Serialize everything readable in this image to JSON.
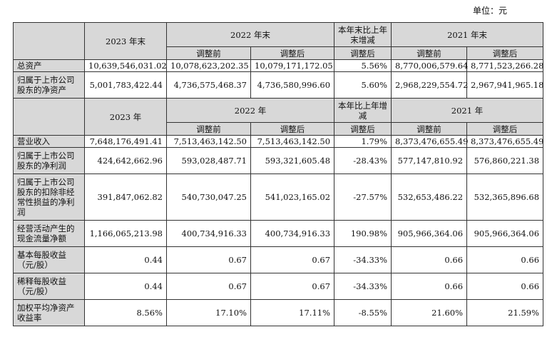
{
  "unit_label": "单位：元",
  "section1": {
    "headers": {
      "y2023": "2023 年末",
      "y2022": "2022 年末",
      "change": "本年末比上年末增减",
      "y2021": "2021 年末",
      "before": "调整前",
      "after": "调整后",
      "change_sub": "调整后"
    },
    "rows": [
      {
        "label": "总资产",
        "v2023": "10,639,546,031.02",
        "v2022_before": "10,078,623,202.35",
        "v2022_after": "10,079,171,172.05",
        "change": "5.56%",
        "v2021_before": "8,770,006,579.64",
        "v2021_after": "8,771,523,266.28"
      },
      {
        "label": "归属于上市公司股东的净资产",
        "v2023": "5,001,783,422.44",
        "v2022_before": "4,736,575,468.37",
        "v2022_after": "4,736,580,996.60",
        "change": "5.60%",
        "v2021_before": "2,968,229,554.72",
        "v2021_after": "2,967,941,965.18"
      }
    ]
  },
  "section2": {
    "headers": {
      "y2023": "2023 年",
      "y2022": "2022 年",
      "change": "本年比上年增减",
      "y2021": "2021 年",
      "before": "调整前",
      "after": "调整后",
      "change_sub": "调整后"
    },
    "rows": [
      {
        "label": "营业收入",
        "v2023": "7,648,176,491.41",
        "v2022_before": "7,513,463,142.50",
        "v2022_after": "7,513,463,142.50",
        "change": "1.79%",
        "v2021_before": "8,373,476,655.49",
        "v2021_after": "8,373,476,655.49"
      },
      {
        "label": "归属于上市公司股东的净利润",
        "v2023": "424,642,662.96",
        "v2022_before": "593,028,487.71",
        "v2022_after": "593,321,605.48",
        "change": "-28.43%",
        "v2021_before": "577,147,810.92",
        "v2021_after": "576,860,221.38"
      },
      {
        "label": "归属于上市公司股东的扣除非经常性损益的净利润",
        "v2023": "391,847,062.82",
        "v2022_before": "540,730,047.25",
        "v2022_after": "541,023,165.02",
        "change": "-27.57%",
        "v2021_before": "532,653,486.22",
        "v2021_after": "532,365,896.68"
      },
      {
        "label": "经营活动产生的现金流量净额",
        "v2023": "1,166,065,213.98",
        "v2022_before": "400,734,916.33",
        "v2022_after": "400,734,916.33",
        "change": "190.98%",
        "v2021_before": "905,966,364.06",
        "v2021_after": "905,966,364.06"
      },
      {
        "label": "基本每股收益（元/股）",
        "v2023": "0.44",
        "v2022_before": "0.67",
        "v2022_after": "0.67",
        "change": "-34.33%",
        "v2021_before": "0.66",
        "v2021_after": "0.66"
      },
      {
        "label": "稀释每股收益（元/股）",
        "v2023": "0.44",
        "v2022_before": "0.67",
        "v2022_after": "0.67",
        "change": "-34.33%",
        "v2021_before": "0.66",
        "v2021_after": "0.66"
      },
      {
        "label": "加权平均净资产收益率",
        "v2023": "8.56%",
        "v2022_before": "17.10%",
        "v2022_after": "17.11%",
        "change": "-8.55%",
        "v2021_before": "21.60%",
        "v2021_after": "21.59%"
      }
    ]
  }
}
